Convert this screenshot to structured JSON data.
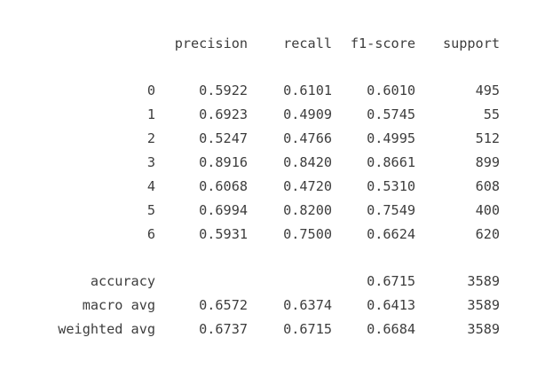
{
  "headers": {
    "precision": "precision",
    "recall": "recall",
    "f1": "f1-score",
    "support": "support"
  },
  "classes": [
    {
      "label": "0",
      "precision": "0.5922",
      "recall": "0.6101",
      "f1": "0.6010",
      "support": "495"
    },
    {
      "label": "1",
      "precision": "0.6923",
      "recall": "0.4909",
      "f1": "0.5745",
      "support": "55"
    },
    {
      "label": "2",
      "precision": "0.5247",
      "recall": "0.4766",
      "f1": "0.4995",
      "support": "512"
    },
    {
      "label": "3",
      "precision": "0.8916",
      "recall": "0.8420",
      "f1": "0.8661",
      "support": "899"
    },
    {
      "label": "4",
      "precision": "0.6068",
      "recall": "0.4720",
      "f1": "0.5310",
      "support": "608"
    },
    {
      "label": "5",
      "precision": "0.6994",
      "recall": "0.8200",
      "f1": "0.7549",
      "support": "400"
    },
    {
      "label": "6",
      "precision": "0.5931",
      "recall": "0.7500",
      "f1": "0.6624",
      "support": "620"
    }
  ],
  "summary": {
    "accuracy": {
      "label": "accuracy",
      "f1": "0.6715",
      "support": "3589"
    },
    "macro_avg": {
      "label": "macro avg",
      "precision": "0.6572",
      "recall": "0.6374",
      "f1": "0.6413",
      "support": "3589"
    },
    "weighted_avg": {
      "label": "weighted avg",
      "precision": "0.6737",
      "recall": "0.6715",
      "f1": "0.6684",
      "support": "3589"
    }
  }
}
